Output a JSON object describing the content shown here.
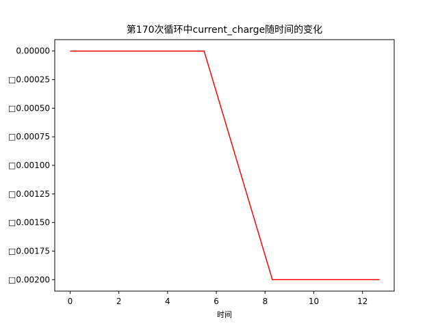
{
  "chart_data": {
    "type": "line",
    "title": "第170次循环中current_charge随时间的变化",
    "xlabel": "时间",
    "ylabel": "",
    "xlim": [
      -0.63,
      13.3
    ],
    "ylim": [
      -0.0021,
      0.0001
    ],
    "x_ticks": [
      0,
      2,
      4,
      6,
      8,
      10,
      12
    ],
    "y_ticks": [
      0.0,
      -0.00025,
      -0.0005,
      -0.00075,
      -0.001,
      -0.00125,
      -0.0015,
      -0.00175,
      -0.002
    ],
    "x_tick_labels": [
      "0",
      "2",
      "4",
      "6",
      "8",
      "10",
      "12"
    ],
    "y_tick_labels": [
      "0.00000",
      "□0.00025",
      "□0.00050",
      "□0.00075",
      "□0.00100",
      "□0.00125",
      "□0.00150",
      "□0.00175",
      "□0.00200"
    ],
    "grid": false,
    "series": [
      {
        "color": "#ff0000",
        "x": [
          0,
          5.5,
          8.3,
          12.7
        ],
        "y": [
          0.0,
          0.0,
          -0.002,
          -0.002
        ]
      }
    ]
  }
}
